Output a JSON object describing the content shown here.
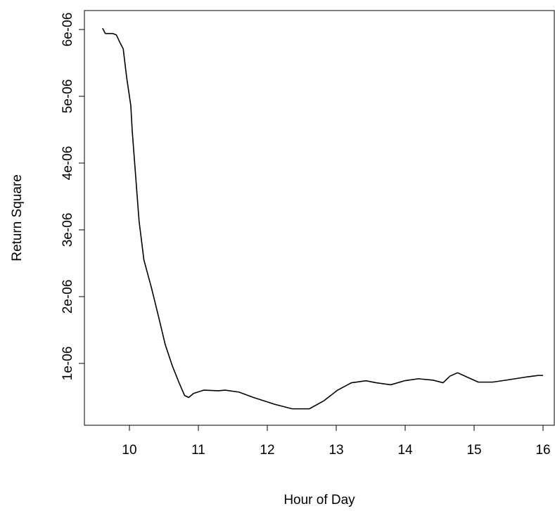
{
  "chart_data": {
    "type": "line",
    "x_label": "Hour of Day",
    "y_label": "Return Square",
    "x": [
      9.61,
      9.65,
      9.755,
      9.81,
      9.86,
      9.91,
      9.96,
      10.02,
      10.04,
      10.09,
      10.14,
      10.21,
      10.32,
      10.42,
      10.52,
      10.62,
      10.72,
      10.8,
      10.86,
      10.93,
      11.08,
      11.29,
      11.39,
      11.59,
      11.8,
      12.1,
      12.36,
      12.61,
      12.82,
      13.02,
      13.22,
      13.43,
      13.58,
      13.79,
      13.99,
      14.19,
      14.4,
      14.55,
      14.65,
      14.76,
      14.91,
      15.06,
      15.27,
      15.47,
      15.78,
      15.93,
      16.0
    ],
    "values": [
      6.02e-06,
      5.94e-06,
      5.94e-06,
      5.92e-06,
      5.81e-06,
      5.71e-06,
      5.28e-06,
      4.86e-06,
      4.49e-06,
      3.81e-06,
      3.13e-06,
      2.55e-06,
      2.13e-06,
      1.71e-06,
      1.28e-06,
      9.7e-07,
      7.1e-07,
      5.2e-07,
      4.9e-07,
      5.5e-07,
      6e-07,
      5.9e-07,
      6e-07,
      5.7e-07,
      4.9e-07,
      3.9e-07,
      3.2e-07,
      3.2e-07,
      4.4e-07,
      6e-07,
      7.1e-07,
      7.4e-07,
      7.1e-07,
      6.8e-07,
      7.4e-07,
      7.7e-07,
      7.5e-07,
      7.1e-07,
      8.1e-07,
      8.6e-07,
      7.9e-07,
      7.2e-07,
      7.2e-07,
      7.5e-07,
      8e-07,
      8.2e-07,
      8.2e-07
    ],
    "color": "#000000",
    "xlim": [
      9.347,
      16.163
    ],
    "ylim": [
      7.4e-08,
      6.284e-06
    ],
    "xticks": [
      10,
      11,
      12,
      13,
      14,
      15,
      16
    ],
    "yticks": [
      {
        "value": 1e-06,
        "label": "1e-06"
      },
      {
        "value": 2e-06,
        "label": "2e-06"
      },
      {
        "value": 3e-06,
        "label": "3e-06"
      },
      {
        "value": 4e-06,
        "label": "4e-06"
      },
      {
        "value": 5e-06,
        "label": "5e-06"
      },
      {
        "value": 6e-06,
        "label": "6e-06"
      }
    ]
  }
}
